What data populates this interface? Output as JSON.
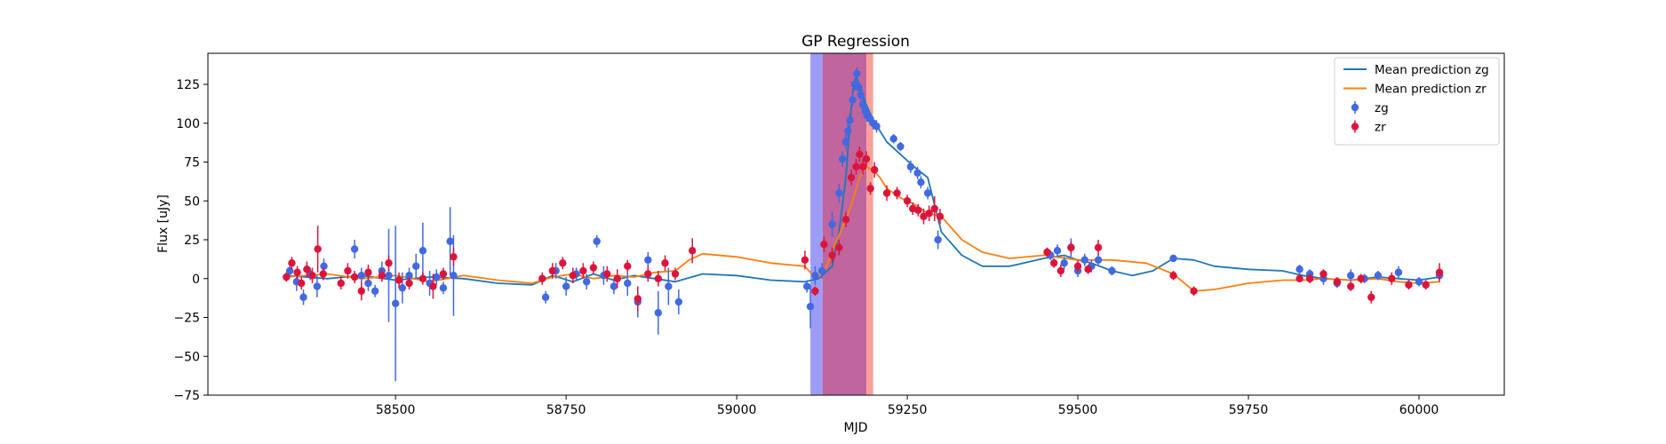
{
  "chart_data": {
    "type": "scatter",
    "title": "GP Regression",
    "xlabel": "MJD",
    "ylabel": "Flux [uJy]",
    "xlim": [
      58225,
      60125
    ],
    "ylim": [
      -75,
      145
    ],
    "xticks": [
      58500,
      58750,
      59000,
      59250,
      59500,
      59750,
      60000
    ],
    "yticks": [
      -75,
      -50,
      -25,
      0,
      25,
      50,
      75,
      100,
      125
    ],
    "grid": false,
    "legend": {
      "placement": "top-right",
      "entries": [
        {
          "label": "Mean prediction zg",
          "kind": "line",
          "color": "#1f77b4"
        },
        {
          "label": "Mean prediction zr",
          "kind": "line",
          "color": "#ff7f0e"
        },
        {
          "label": "zg",
          "kind": "errorbar",
          "color": "#4169e1"
        },
        {
          "label": "zr",
          "kind": "errorbar",
          "color": "#dc143c"
        }
      ]
    },
    "spans": [
      {
        "x0": 59108,
        "x1": 59126,
        "color": "#7b7bf0",
        "opacity": 0.75
      },
      {
        "x0": 59126,
        "x1": 59190,
        "color": "#c0659e",
        "opacity": 1.0
      },
      {
        "x0": 59190,
        "x1": 59200,
        "color": "#f7908a",
        "opacity": 0.85
      }
    ],
    "series": [
      {
        "name": "Mean prediction zg",
        "kind": "line",
        "color": "#1f77b4",
        "x": [
          58340,
          58400,
          58450,
          58500,
          58550,
          58600,
          58650,
          58700,
          58730,
          58760,
          58790,
          58820,
          58850,
          58880,
          58910,
          58950,
          59000,
          59050,
          59100,
          59120,
          59140,
          59150,
          59160,
          59165,
          59170,
          59175,
          59180,
          59185,
          59190,
          59200,
          59210,
          59220,
          59240,
          59260,
          59280,
          59300,
          59330,
          59360,
          59400,
          59450,
          59480,
          59500,
          59520,
          59550,
          59580,
          59610,
          59640,
          59670,
          59700,
          59750,
          59800,
          59830,
          59860,
          59900,
          59940,
          59970,
          60000,
          60030
        ],
        "y": [
          2,
          0,
          2,
          -1,
          1,
          0,
          -3,
          -4,
          2,
          -2,
          3,
          -1,
          2,
          0,
          -2,
          3,
          2,
          -1,
          -2,
          0,
          8,
          30,
          65,
          95,
          120,
          130,
          125,
          118,
          112,
          102,
          95,
          88,
          80,
          72,
          65,
          30,
          15,
          8,
          8,
          13,
          15,
          12,
          10,
          5,
          2,
          5,
          13,
          12,
          8,
          6,
          5,
          2,
          0,
          -1,
          1,
          0,
          -1,
          1
        ]
      },
      {
        "name": "Mean prediction zr",
        "kind": "line",
        "color": "#ff7f0e",
        "x": [
          58340,
          58400,
          58450,
          58500,
          58550,
          58600,
          58650,
          58700,
          58730,
          58760,
          58790,
          58820,
          58850,
          58880,
          58910,
          58930,
          58950,
          59000,
          59050,
          59100,
          59110,
          59120,
          59130,
          59140,
          59150,
          59160,
          59170,
          59180,
          59190,
          59200,
          59210,
          59220,
          59240,
          59260,
          59280,
          59300,
          59330,
          59360,
          59400,
          59450,
          59500,
          59550,
          59600,
          59640,
          59670,
          59700,
          59750,
          59800,
          59830,
          59860,
          59900,
          59940,
          59970,
          60000,
          60030
        ],
        "y": [
          1,
          3,
          0,
          2,
          -2,
          2,
          -1,
          -3,
          1,
          3,
          0,
          2,
          1,
          4,
          5,
          12,
          16,
          14,
          10,
          8,
          3,
          1,
          6,
          18,
          28,
          38,
          50,
          65,
          72,
          70,
          65,
          58,
          52,
          48,
          42,
          40,
          25,
          17,
          13,
          15,
          12,
          12,
          10,
          3,
          -8,
          -7,
          -3,
          -1,
          -1,
          0,
          -1,
          0,
          -2,
          -3,
          -2
        ]
      },
      {
        "name": "zg",
        "kind": "errorbar",
        "color": "#4169e1",
        "x": [
          58345,
          58355,
          58365,
          58375,
          58385,
          58395,
          58440,
          58450,
          58460,
          58470,
          58480,
          58490,
          58500,
          58510,
          58520,
          58530,
          58540,
          58550,
          58560,
          58570,
          58580,
          58585,
          58720,
          58735,
          58750,
          58765,
          58780,
          58795,
          58805,
          58820,
          58840,
          58855,
          58870,
          58885,
          58900,
          58915,
          59103,
          59108,
          59115,
          59125,
          59140,
          59150,
          59155,
          59160,
          59163,
          59166,
          59170,
          59173,
          59176,
          59179,
          59182,
          59185,
          59188,
          59191,
          59195,
          59200,
          59205,
          59230,
          59240,
          59255,
          59265,
          59270,
          59280,
          59295,
          59460,
          59470,
          59480,
          59490,
          59500,
          59510,
          59520,
          59530,
          59550,
          59640,
          59825,
          59840,
          59860,
          59880,
          59900,
          59920,
          59940,
          59970,
          60000,
          60030
        ],
        "y": [
          5,
          -2,
          -12,
          3,
          -5,
          8,
          19,
          2,
          -3,
          -8,
          5,
          2,
          -16,
          -6,
          2,
          8,
          18,
          -3,
          1,
          -6,
          24,
          2,
          -12,
          5,
          -5,
          3,
          -2,
          24,
          2,
          -5,
          -3,
          -15,
          12,
          -22,
          -5,
          -15,
          -5,
          -18,
          2,
          5,
          35,
          55,
          77,
          88,
          95,
          102,
          115,
          125,
          132,
          123,
          118,
          112,
          108,
          105,
          103,
          100,
          98,
          90,
          85,
          72,
          68,
          62,
          55,
          25,
          15,
          18,
          10,
          20,
          5,
          12,
          8,
          12,
          5,
          13,
          6,
          3,
          0,
          -3,
          2,
          0,
          2,
          4,
          -2,
          2
        ],
        "err": [
          3,
          6,
          5,
          4,
          7,
          5,
          6,
          5,
          5,
          4,
          6,
          30,
          50,
          10,
          5,
          8,
          18,
          8,
          5,
          4,
          22,
          26,
          4,
          5,
          6,
          4,
          5,
          4,
          6,
          5,
          8,
          10,
          5,
          14,
          12,
          8,
          4,
          14,
          6,
          5,
          8,
          6,
          5,
          5,
          5,
          4,
          4,
          4,
          4,
          4,
          4,
          4,
          4,
          4,
          4,
          4,
          4,
          3,
          3,
          4,
          4,
          4,
          4,
          6,
          3,
          4,
          4,
          6,
          4,
          4,
          4,
          4,
          3,
          2,
          3,
          3,
          4,
          3,
          4,
          3,
          3,
          4,
          3,
          3
        ]
      },
      {
        "name": "zr",
        "kind": "errorbar",
        "color": "#dc143c",
        "x": [
          58340,
          58348,
          58356,
          58362,
          58370,
          58378,
          58386,
          58394,
          58420,
          58430,
          58440,
          58450,
          58460,
          58480,
          58490,
          58505,
          58520,
          58540,
          58555,
          58570,
          58585,
          58715,
          58730,
          58745,
          58760,
          58775,
          58790,
          58810,
          58825,
          58840,
          58855,
          58870,
          58885,
          58895,
          58910,
          58935,
          59100,
          59115,
          59128,
          59140,
          59150,
          59160,
          59168,
          59175,
          59180,
          59185,
          59190,
          59196,
          59202,
          59220,
          59235,
          59250,
          59258,
          59266,
          59274,
          59282,
          59290,
          59298,
          59455,
          59465,
          59475,
          59490,
          59500,
          59515,
          59530,
          59640,
          59670,
          59825,
          59840,
          59860,
          59880,
          59900,
          59915,
          59930,
          59960,
          59985,
          60010,
          60030
        ],
        "y": [
          1,
          10,
          4,
          -3,
          6,
          2,
          19,
          3,
          -3,
          5,
          1,
          -8,
          4,
          2,
          10,
          -1,
          -3,
          0,
          -5,
          3,
          14,
          0,
          5,
          10,
          2,
          5,
          7,
          3,
          0,
          8,
          -13,
          3,
          0,
          10,
          3,
          18,
          12,
          -8,
          22,
          15,
          20,
          38,
          65,
          72,
          80,
          72,
          77,
          58,
          70,
          55,
          55,
          50,
          45,
          44,
          40,
          42,
          45,
          40,
          17,
          10,
          5,
          20,
          8,
          6,
          20,
          2,
          -8,
          0,
          0,
          3,
          -2,
          -5,
          0,
          -12,
          0,
          -4,
          -4,
          4
        ],
        "err": [
          3,
          4,
          4,
          4,
          5,
          5,
          15,
          4,
          4,
          5,
          4,
          6,
          5,
          4,
          5,
          5,
          4,
          4,
          8,
          4,
          6,
          4,
          5,
          4,
          5,
          5,
          4,
          5,
          6,
          4,
          8,
          5,
          5,
          5,
          4,
          8,
          6,
          3,
          5,
          5,
          5,
          5,
          5,
          5,
          5,
          5,
          5,
          4,
          5,
          5,
          4,
          4,
          4,
          4,
          5,
          5,
          8,
          5,
          3,
          3,
          4,
          4,
          4,
          3,
          5,
          3,
          3,
          2,
          3,
          3,
          3,
          3,
          3,
          4,
          4,
          3,
          3,
          6
        ]
      }
    ]
  }
}
